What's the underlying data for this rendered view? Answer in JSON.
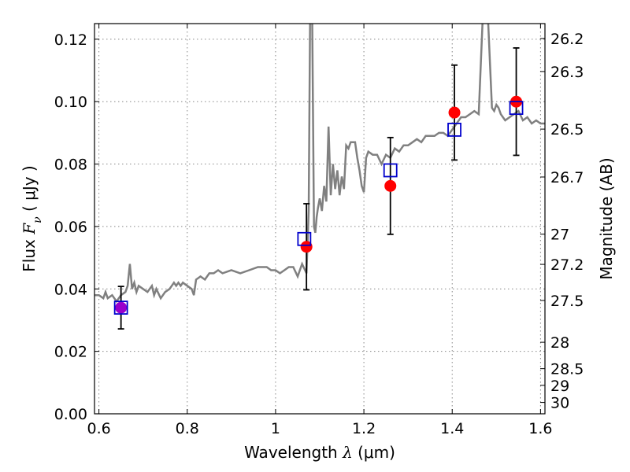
{
  "chart_data": {
    "type": "scatter",
    "title": "",
    "xlabel": {
      "prefix": "Wavelength ",
      "symbol": "λ",
      "units": " (μm)"
    },
    "ylabel": {
      "prefix": "Flux ",
      "symbol": "F",
      "subscript": "ν",
      "units": " ( μJy )"
    },
    "y2label": "Magnitude (AB)",
    "xlim": [
      0.59,
      1.61
    ],
    "ylim": [
      0.0,
      0.125
    ],
    "grid": true,
    "x_ticks": [
      0.6,
      0.8,
      1.0,
      1.2,
      1.4,
      1.6
    ],
    "x_tick_labels": [
      "0.6",
      "0.8",
      "1",
      "1.2",
      "1.4",
      "1.6"
    ],
    "y_ticks": [
      0.0,
      0.02,
      0.04,
      0.06,
      0.08,
      0.1,
      0.12
    ],
    "y_tick_labels": [
      "0.00",
      "0.02",
      "0.04",
      "0.06",
      "0.08",
      "0.10",
      "0.12"
    ],
    "y2_ticks": [
      26.2,
      26.3,
      26.5,
      26.7,
      27,
      27.2,
      27.5,
      28,
      28.5,
      29,
      30
    ],
    "y2_tick_labels": [
      "26.2",
      "26.3",
      "26.5",
      "26.7",
      "27",
      "27.2",
      "27.5",
      "28",
      "28.5",
      "29",
      "30"
    ],
    "colors": {
      "spectrum": "#808080",
      "observed": "#ff0000",
      "model": "#0000cc",
      "overlap": "#9900cc",
      "errorbar": "#000000",
      "grid": "#888888"
    },
    "series": [
      {
        "kind": "line",
        "color": "#808080",
        "x": [
          0.59,
          0.6,
          0.61,
          0.615,
          0.62,
          0.63,
          0.64,
          0.65,
          0.66,
          0.665,
          0.67,
          0.675,
          0.68,
          0.685,
          0.69,
          0.7,
          0.71,
          0.72,
          0.725,
          0.73,
          0.74,
          0.75,
          0.76,
          0.77,
          0.775,
          0.78,
          0.785,
          0.79,
          0.8,
          0.81,
          0.815,
          0.82,
          0.83,
          0.84,
          0.85,
          0.86,
          0.87,
          0.88,
          0.9,
          0.92,
          0.94,
          0.96,
          0.98,
          0.99,
          1.0,
          1.01,
          1.02,
          1.03,
          1.04,
          1.05,
          1.06,
          1.07,
          1.075,
          1.078,
          1.08,
          1.083,
          1.087,
          1.09,
          1.093,
          1.096,
          1.1,
          1.105,
          1.11,
          1.115,
          1.12,
          1.125,
          1.13,
          1.135,
          1.14,
          1.145,
          1.15,
          1.155,
          1.16,
          1.165,
          1.17,
          1.175,
          1.18,
          1.185,
          1.19,
          1.195,
          1.2,
          1.205,
          1.21,
          1.22,
          1.23,
          1.24,
          1.25,
          1.26,
          1.27,
          1.28,
          1.29,
          1.3,
          1.31,
          1.32,
          1.33,
          1.34,
          1.35,
          1.36,
          1.37,
          1.38,
          1.39,
          1.4,
          1.41,
          1.42,
          1.43,
          1.44,
          1.45,
          1.46,
          1.47,
          1.48,
          1.49,
          1.495,
          1.5,
          1.505,
          1.51,
          1.52,
          1.53,
          1.54,
          1.55,
          1.56,
          1.57,
          1.58,
          1.59,
          1.6,
          1.61
        ],
        "y": [
          0.038,
          0.038,
          0.037,
          0.039,
          0.037,
          0.038,
          0.036,
          0.038,
          0.039,
          0.041,
          0.048,
          0.04,
          0.042,
          0.039,
          0.041,
          0.04,
          0.039,
          0.041,
          0.038,
          0.04,
          0.037,
          0.039,
          0.04,
          0.042,
          0.041,
          0.042,
          0.041,
          0.042,
          0.041,
          0.04,
          0.038,
          0.043,
          0.044,
          0.043,
          0.045,
          0.045,
          0.046,
          0.045,
          0.046,
          0.045,
          0.046,
          0.047,
          0.047,
          0.046,
          0.046,
          0.045,
          0.046,
          0.047,
          0.047,
          0.044,
          0.048,
          0.045,
          0.065,
          0.125,
          0.13,
          0.125,
          0.06,
          0.058,
          0.063,
          0.066,
          0.069,
          0.065,
          0.073,
          0.068,
          0.092,
          0.07,
          0.08,
          0.072,
          0.078,
          0.07,
          0.076,
          0.072,
          0.086,
          0.085,
          0.087,
          0.087,
          0.087,
          0.082,
          0.078,
          0.073,
          0.071,
          0.082,
          0.084,
          0.083,
          0.083,
          0.08,
          0.083,
          0.082,
          0.085,
          0.084,
          0.086,
          0.086,
          0.087,
          0.088,
          0.087,
          0.089,
          0.089,
          0.089,
          0.09,
          0.09,
          0.089,
          0.091,
          0.093,
          0.095,
          0.095,
          0.096,
          0.097,
          0.096,
          0.13,
          0.13,
          0.098,
          0.097,
          0.099,
          0.098,
          0.096,
          0.094,
          0.095,
          0.096,
          0.097,
          0.094,
          0.095,
          0.093,
          0.094,
          0.093,
          0.093
        ]
      },
      {
        "kind": "points",
        "marker": "circle",
        "color": "#ff0000",
        "x": [
          0.65,
          1.07,
          1.26,
          1.405,
          1.545
        ],
        "y": [
          0.034,
          0.0535,
          0.073,
          0.0965,
          0.1
        ],
        "yerr": [
          0.0068,
          0.0138,
          0.0155,
          0.0152,
          0.0172
        ]
      },
      {
        "kind": "points",
        "marker": "open-square",
        "color": "#0000cc",
        "x": [
          0.65,
          1.065,
          1.26,
          1.405,
          1.545
        ],
        "y": [
          0.034,
          0.056,
          0.078,
          0.091,
          0.098
        ]
      }
    ]
  }
}
